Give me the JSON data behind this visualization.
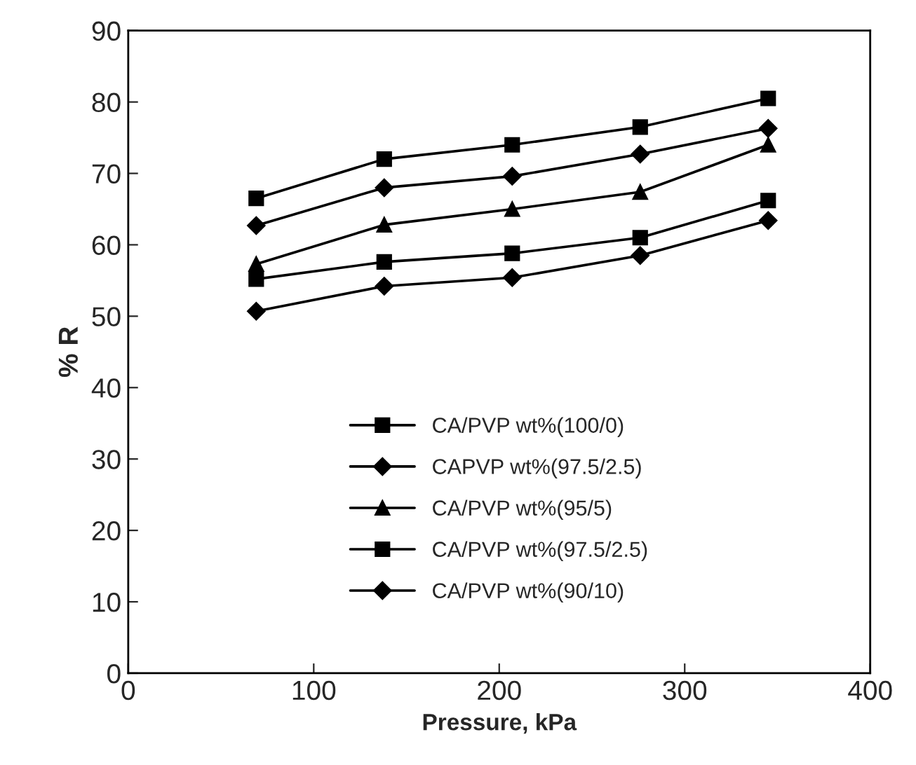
{
  "chart_data": {
    "type": "line",
    "xlabel": "Pressure, kPa",
    "ylabel": "% R",
    "x": [
      69,
      138,
      207,
      276,
      345
    ],
    "xlim": [
      0,
      400
    ],
    "xticks": [
      0,
      100,
      200,
      300,
      400
    ],
    "ylim": [
      0,
      90
    ],
    "yticks": [
      0,
      10,
      20,
      30,
      40,
      50,
      60,
      70,
      80,
      90
    ],
    "grid": false,
    "legend": "bottom",
    "line_style": "solid",
    "series": [
      {
        "name": "CA/PVP wt%(100/0)",
        "color": "#000000",
        "marker": "square",
        "values": [
          66.5,
          72,
          74,
          76.5,
          80.5
        ]
      },
      {
        "name": "CAPVP wt%(97.5/2.5)",
        "color": "#000000",
        "marker": "diamond",
        "values": [
          62.7,
          68,
          69.6,
          72.7,
          76.3
        ]
      },
      {
        "name": "CA/PVP wt%(95/5)",
        "color": "#000000",
        "marker": "triangle",
        "values": [
          57.3,
          62.8,
          65,
          67.4,
          74
        ]
      },
      {
        "name": "CA/PVP wt%(97.5/2.5)",
        "color": "#000000",
        "marker": "square",
        "values": [
          55.2,
          57.6,
          58.8,
          61,
          66.2
        ]
      },
      {
        "name": "CA/PVP wt%(90/10)",
        "color": "#000000",
        "marker": "diamond",
        "values": [
          50.7,
          54.2,
          55.4,
          58.5,
          63.4
        ]
      }
    ]
  }
}
